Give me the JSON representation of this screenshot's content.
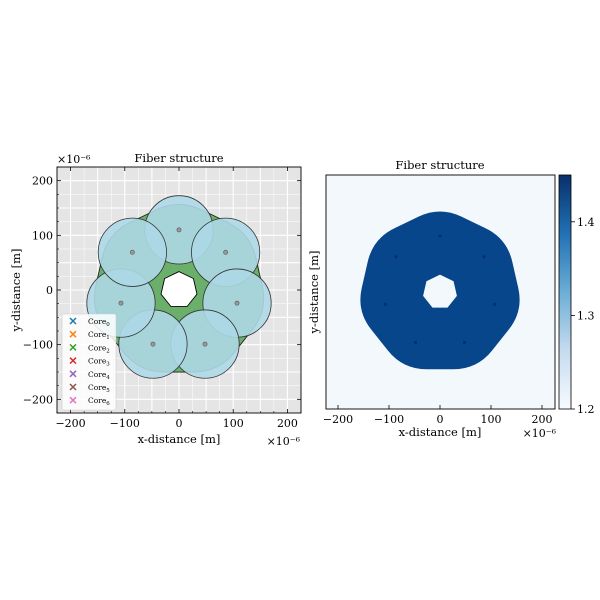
{
  "chart_data": [
    {
      "type": "scatter",
      "title": "Fiber structure",
      "xlabel": "x-distance [m]",
      "ylabel": "y-distance [m]",
      "x_multiplier": "×10⁻⁶",
      "y_multiplier": "×10⁻⁶",
      "xlim": [
        -225,
        225
      ],
      "ylim": [
        -225,
        225
      ],
      "xticks": [
        -200,
        -100,
        0,
        100,
        200
      ],
      "yticks": [
        -200,
        -100,
        0,
        100,
        200
      ],
      "xtick_labels": [
        "−200",
        "−100",
        "0",
        "100",
        "200"
      ],
      "ytick_labels": [
        "−200",
        "−100",
        "0",
        "100",
        "200"
      ],
      "grid": true,
      "legend_position": "lower-left",
      "cladding_color": "#6aaf6a",
      "core_color": "#add8e6",
      "background_color": "#e5e5e5",
      "hole": {
        "shape": "heptagon",
        "radius": 34
      },
      "cladding": {
        "shape": "rounded-heptagon",
        "radius": 168
      },
      "cores": [
        {
          "name": "Core",
          "sub": "0",
          "x": 0,
          "y": 110,
          "radius": 63,
          "color": "#1f77b4"
        },
        {
          "name": "Core",
          "sub": "1",
          "x": 86,
          "y": 69,
          "radius": 63,
          "color": "#ff7f0e"
        },
        {
          "name": "Core",
          "sub": "2",
          "x": 107,
          "y": -24,
          "radius": 63,
          "color": "#2ca02c"
        },
        {
          "name": "Core",
          "sub": "3",
          "x": 48,
          "y": -99,
          "radius": 63,
          "color": "#d62728"
        },
        {
          "name": "Core",
          "sub": "4",
          "x": -48,
          "y": -99,
          "radius": 63,
          "color": "#9467bd"
        },
        {
          "name": "Core",
          "sub": "5",
          "x": -107,
          "y": -24,
          "radius": 63,
          "color": "#8c564b"
        },
        {
          "name": "Core",
          "sub": "6",
          "x": -86,
          "y": 69,
          "radius": 63,
          "color": "#e377c2"
        }
      ]
    },
    {
      "type": "heatmap",
      "title": "Fiber structure",
      "xlabel": "x-distance [m]",
      "ylabel": "y-distance [m]",
      "x_multiplier": "×10⁻⁶",
      "xlim": [
        -200,
        200
      ],
      "ylim": [
        -200,
        200
      ],
      "xticks": [
        -200,
        -100,
        0,
        100,
        200
      ],
      "xtick_labels": [
        "−200",
        "−100",
        "0",
        "100",
        "200"
      ],
      "colormap": "Blues",
      "value_range": [
        1.2,
        1.45
      ],
      "colorbar_ticks": [
        1.4,
        1.3,
        1.2
      ],
      "colorbar_tick_labels": [
        "1.4",
        "1.3",
        "1.2"
      ],
      "fiber_value": 1.44,
      "background_value": 1.0,
      "fiber_color": "#08468c",
      "background_color": "#f3f8fd"
    }
  ]
}
